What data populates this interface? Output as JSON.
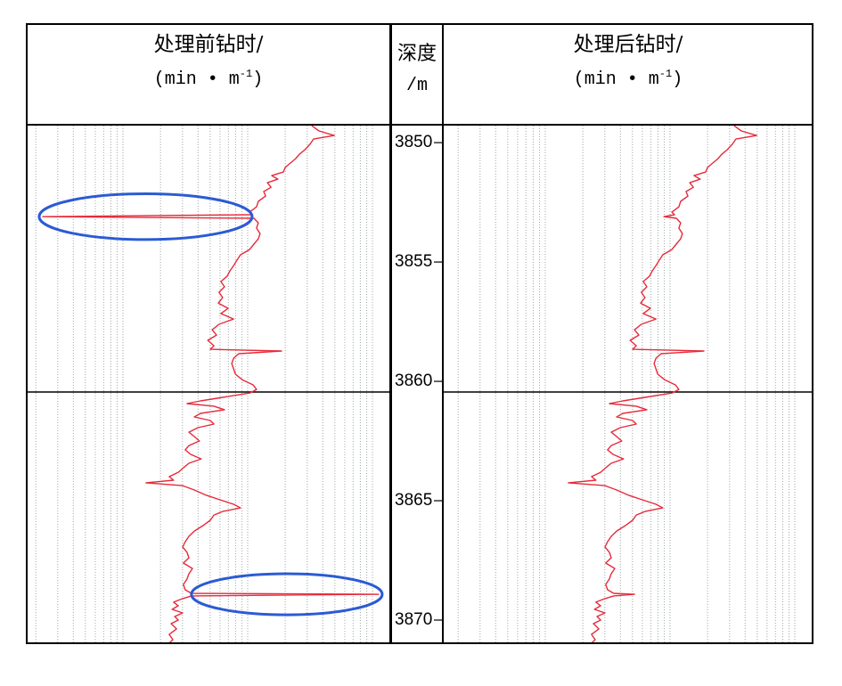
{
  "colors": {
    "curve": "#e62a3a",
    "ellipse": "#2b5bd4",
    "grid": "#9ea6a6",
    "frame": "#000000"
  },
  "chart_data": {
    "type": "line",
    "depth_axis": {
      "title": "深度",
      "unit": "/m",
      "range": [
        3849.25,
        3870.97
      ],
      "inverted": true,
      "ticks": [
        3850,
        3855,
        3860,
        3865,
        3870
      ]
    },
    "value_axis": {
      "scale": "log",
      "range": [
        0,
        1
      ],
      "grid": true
    },
    "series": [
      {
        "title": "处理前钻时/",
        "unit_prefix": "(min • m",
        "unit_exp": "-1",
        "unit_suffix": ")",
        "points": [
          [
            3849.29,
            0.784
          ],
          [
            3849.51,
            0.804
          ],
          [
            3849.7,
            0.846
          ],
          [
            3849.85,
            0.789
          ],
          [
            3850.07,
            0.779
          ],
          [
            3850.3,
            0.765
          ],
          [
            3850.49,
            0.75
          ],
          [
            3850.67,
            0.74
          ],
          [
            3850.86,
            0.725
          ],
          [
            3851.04,
            0.711
          ],
          [
            3851.23,
            0.706
          ],
          [
            3851.38,
            0.674
          ],
          [
            3851.53,
            0.691
          ],
          [
            3851.68,
            0.662
          ],
          [
            3851.87,
            0.672
          ],
          [
            3852.05,
            0.652
          ],
          [
            3852.24,
            0.657
          ],
          [
            3852.46,
            0.637
          ],
          [
            3852.69,
            0.632
          ],
          [
            3852.91,
            0.613
          ],
          [
            3853.02,
            0.62
          ],
          [
            3853.1,
            0.044
          ],
          [
            3853.17,
            0.625
          ],
          [
            3853.36,
            0.637
          ],
          [
            3853.58,
            0.632
          ],
          [
            3853.81,
            0.642
          ],
          [
            3854.03,
            0.637
          ],
          [
            3854.25,
            0.625
          ],
          [
            3854.48,
            0.613
          ],
          [
            3854.7,
            0.588
          ],
          [
            3854.93,
            0.578
          ],
          [
            3855.15,
            0.569
          ],
          [
            3855.37,
            0.559
          ],
          [
            3855.6,
            0.551
          ],
          [
            3855.82,
            0.534
          ],
          [
            3856.04,
            0.544
          ],
          [
            3856.27,
            0.529
          ],
          [
            3856.49,
            0.539
          ],
          [
            3856.72,
            0.527
          ],
          [
            3856.94,
            0.554
          ],
          [
            3857.16,
            0.534
          ],
          [
            3857.39,
            0.569
          ],
          [
            3857.61,
            0.529
          ],
          [
            3857.84,
            0.51
          ],
          [
            3858.06,
            0.522
          ],
          [
            3858.28,
            0.498
          ],
          [
            3858.51,
            0.515
          ],
          [
            3858.66,
            0.505
          ],
          [
            3858.73,
            0.701
          ],
          [
            3858.84,
            0.583
          ],
          [
            3859.03,
            0.569
          ],
          [
            3859.25,
            0.564
          ],
          [
            3859.48,
            0.569
          ],
          [
            3859.7,
            0.574
          ],
          [
            3859.93,
            0.593
          ],
          [
            3860.15,
            0.623
          ],
          [
            3860.34,
            0.632
          ],
          [
            3860.49,
            0.613
          ],
          [
            3860.67,
            0.539
          ],
          [
            3860.82,
            0.478
          ],
          [
            3860.93,
            0.441
          ],
          [
            3861.04,
            0.515
          ],
          [
            3861.19,
            0.544
          ],
          [
            3861.34,
            0.478
          ],
          [
            3861.49,
            0.461
          ],
          [
            3861.64,
            0.505
          ],
          [
            3861.79,
            0.515
          ],
          [
            3861.94,
            0.471
          ],
          [
            3862.13,
            0.446
          ],
          [
            3862.31,
            0.461
          ],
          [
            3862.5,
            0.475
          ],
          [
            3862.69,
            0.446
          ],
          [
            3862.87,
            0.436
          ],
          [
            3863.06,
            0.451
          ],
          [
            3863.25,
            0.48
          ],
          [
            3863.43,
            0.446
          ],
          [
            3863.62,
            0.431
          ],
          [
            3863.81,
            0.417
          ],
          [
            3863.99,
            0.392
          ],
          [
            3864.14,
            0.404
          ],
          [
            3864.25,
            0.328
          ],
          [
            3864.37,
            0.429
          ],
          [
            3864.55,
            0.461
          ],
          [
            3864.78,
            0.495
          ],
          [
            3865.0,
            0.539
          ],
          [
            3865.15,
            0.569
          ],
          [
            3865.3,
            0.588
          ],
          [
            3865.45,
            0.539
          ],
          [
            3865.6,
            0.515
          ],
          [
            3865.82,
            0.505
          ],
          [
            3866.04,
            0.485
          ],
          [
            3866.27,
            0.461
          ],
          [
            3866.49,
            0.446
          ],
          [
            3866.72,
            0.436
          ],
          [
            3866.94,
            0.429
          ],
          [
            3867.16,
            0.441
          ],
          [
            3867.39,
            0.446
          ],
          [
            3867.61,
            0.431
          ],
          [
            3867.84,
            0.456
          ],
          [
            3868.06,
            0.446
          ],
          [
            3868.28,
            0.441
          ],
          [
            3868.51,
            0.431
          ],
          [
            3868.73,
            0.436
          ],
          [
            3868.88,
            0.453
          ],
          [
            3868.92,
            0.968
          ],
          [
            3868.99,
            0.453
          ],
          [
            3869.1,
            0.429
          ],
          [
            3869.25,
            0.404
          ],
          [
            3869.4,
            0.417
          ],
          [
            3869.55,
            0.4
          ],
          [
            3869.7,
            0.429
          ],
          [
            3869.85,
            0.407
          ],
          [
            3870.0,
            0.417
          ],
          [
            3870.15,
            0.397
          ],
          [
            3870.37,
            0.412
          ],
          [
            3870.6,
            0.392
          ],
          [
            3870.82,
            0.402
          ],
          [
            3870.97,
            0.392
          ]
        ]
      },
      {
        "title": "处理后钻时/",
        "unit_prefix": "(min • m",
        "unit_exp": "-1",
        "unit_suffix": ")",
        "points": [
          [
            3849.29,
            0.784
          ],
          [
            3849.51,
            0.804
          ],
          [
            3849.7,
            0.846
          ],
          [
            3849.85,
            0.789
          ],
          [
            3850.07,
            0.779
          ],
          [
            3850.3,
            0.765
          ],
          [
            3850.49,
            0.75
          ],
          [
            3850.67,
            0.74
          ],
          [
            3850.86,
            0.725
          ],
          [
            3851.04,
            0.711
          ],
          [
            3851.23,
            0.706
          ],
          [
            3851.38,
            0.674
          ],
          [
            3851.53,
            0.691
          ],
          [
            3851.68,
            0.662
          ],
          [
            3851.87,
            0.672
          ],
          [
            3852.05,
            0.652
          ],
          [
            3852.24,
            0.657
          ],
          [
            3852.46,
            0.637
          ],
          [
            3852.69,
            0.632
          ],
          [
            3852.91,
            0.613
          ],
          [
            3853.02,
            0.62
          ],
          [
            3853.1,
            0.591
          ],
          [
            3853.17,
            0.625
          ],
          [
            3853.36,
            0.637
          ],
          [
            3853.58,
            0.632
          ],
          [
            3853.81,
            0.642
          ],
          [
            3854.03,
            0.637
          ],
          [
            3854.25,
            0.625
          ],
          [
            3854.48,
            0.613
          ],
          [
            3854.7,
            0.588
          ],
          [
            3854.93,
            0.578
          ],
          [
            3855.15,
            0.569
          ],
          [
            3855.37,
            0.559
          ],
          [
            3855.6,
            0.551
          ],
          [
            3855.82,
            0.534
          ],
          [
            3856.04,
            0.544
          ],
          [
            3856.27,
            0.529
          ],
          [
            3856.49,
            0.539
          ],
          [
            3856.72,
            0.527
          ],
          [
            3856.94,
            0.554
          ],
          [
            3857.16,
            0.534
          ],
          [
            3857.39,
            0.569
          ],
          [
            3857.61,
            0.529
          ],
          [
            3857.84,
            0.51
          ],
          [
            3858.06,
            0.522
          ],
          [
            3858.28,
            0.498
          ],
          [
            3858.51,
            0.515
          ],
          [
            3858.66,
            0.505
          ],
          [
            3858.73,
            0.701
          ],
          [
            3858.84,
            0.583
          ],
          [
            3859.03,
            0.569
          ],
          [
            3859.25,
            0.564
          ],
          [
            3859.48,
            0.569
          ],
          [
            3859.7,
            0.574
          ],
          [
            3859.93,
            0.593
          ],
          [
            3860.15,
            0.623
          ],
          [
            3860.34,
            0.632
          ],
          [
            3860.49,
            0.613
          ],
          [
            3860.67,
            0.539
          ],
          [
            3860.82,
            0.478
          ],
          [
            3860.93,
            0.441
          ],
          [
            3861.04,
            0.515
          ],
          [
            3861.19,
            0.544
          ],
          [
            3861.34,
            0.478
          ],
          [
            3861.49,
            0.461
          ],
          [
            3861.64,
            0.505
          ],
          [
            3861.79,
            0.515
          ],
          [
            3861.94,
            0.471
          ],
          [
            3862.13,
            0.446
          ],
          [
            3862.31,
            0.461
          ],
          [
            3862.5,
            0.475
          ],
          [
            3862.69,
            0.446
          ],
          [
            3862.87,
            0.436
          ],
          [
            3863.06,
            0.451
          ],
          [
            3863.25,
            0.48
          ],
          [
            3863.43,
            0.446
          ],
          [
            3863.62,
            0.431
          ],
          [
            3863.81,
            0.417
          ],
          [
            3863.99,
            0.392
          ],
          [
            3864.14,
            0.404
          ],
          [
            3864.25,
            0.328
          ],
          [
            3864.37,
            0.429
          ],
          [
            3864.55,
            0.461
          ],
          [
            3864.78,
            0.495
          ],
          [
            3865.0,
            0.539
          ],
          [
            3865.15,
            0.569
          ],
          [
            3865.3,
            0.588
          ],
          [
            3865.45,
            0.539
          ],
          [
            3865.6,
            0.515
          ],
          [
            3865.82,
            0.505
          ],
          [
            3866.04,
            0.485
          ],
          [
            3866.27,
            0.461
          ],
          [
            3866.49,
            0.446
          ],
          [
            3866.72,
            0.436
          ],
          [
            3866.94,
            0.429
          ],
          [
            3867.16,
            0.441
          ],
          [
            3867.39,
            0.446
          ],
          [
            3867.61,
            0.431
          ],
          [
            3867.84,
            0.456
          ],
          [
            3868.06,
            0.446
          ],
          [
            3868.28,
            0.441
          ],
          [
            3868.51,
            0.431
          ],
          [
            3868.73,
            0.436
          ],
          [
            3868.88,
            0.453
          ],
          [
            3868.92,
            0.51
          ],
          [
            3868.99,
            0.453
          ],
          [
            3869.1,
            0.429
          ],
          [
            3869.25,
            0.404
          ],
          [
            3869.4,
            0.417
          ],
          [
            3869.55,
            0.4
          ],
          [
            3869.7,
            0.429
          ],
          [
            3869.85,
            0.407
          ],
          [
            3870.0,
            0.417
          ],
          [
            3870.15,
            0.397
          ],
          [
            3870.37,
            0.412
          ],
          [
            3870.6,
            0.392
          ],
          [
            3870.82,
            0.402
          ],
          [
            3870.97,
            0.392
          ]
        ]
      }
    ],
    "annotations": [
      {
        "type": "ellipse",
        "series": 0,
        "depth": 3853.1
      },
      {
        "type": "ellipse",
        "series": 0,
        "depth": 3868.92
      }
    ]
  }
}
